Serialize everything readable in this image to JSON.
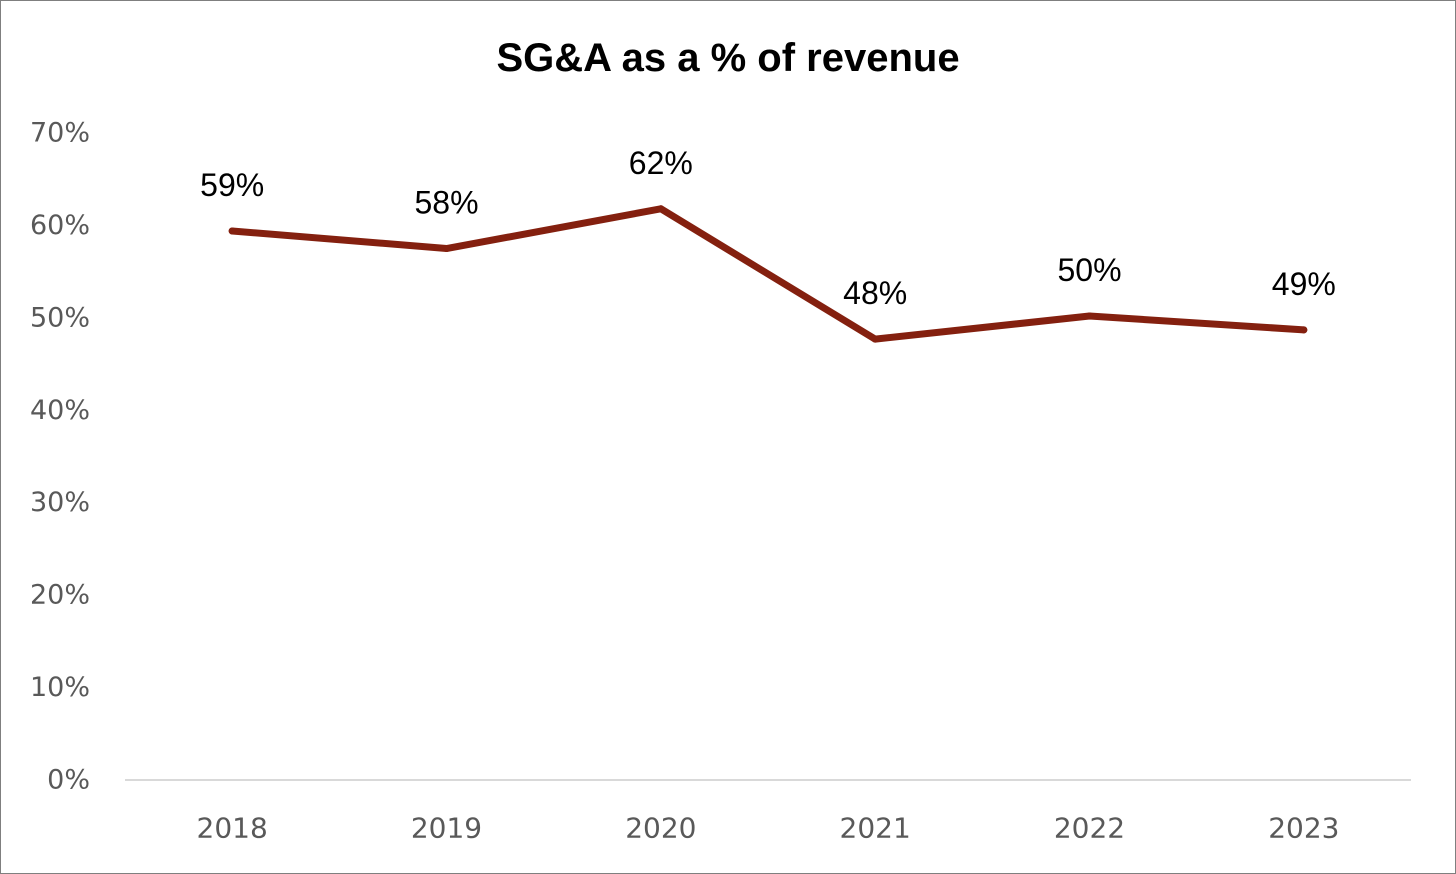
{
  "chart_data": {
    "type": "line",
    "title": "SG&A as a % of revenue",
    "xlabel": "",
    "ylabel": "",
    "categories": [
      "2018",
      "2019",
      "2020",
      "2021",
      "2022",
      "2023"
    ],
    "values": [
      59.4,
      57.5,
      61.8,
      47.7,
      50.2,
      48.7
    ],
    "data_labels": [
      "59%",
      "58%",
      "62%",
      "48%",
      "50%",
      "49%"
    ],
    "ylim": [
      0,
      70
    ],
    "yticks": [
      0,
      10,
      20,
      30,
      40,
      50,
      60,
      70
    ],
    "ytick_labels": [
      "0%",
      "10%",
      "20%",
      "30%",
      "40%",
      "50%",
      "60%",
      "70%"
    ],
    "grid": false,
    "legend": "none",
    "line_color": "#84200f",
    "axis_color": "#d9d9d9",
    "tick_label_color": "#595959"
  }
}
